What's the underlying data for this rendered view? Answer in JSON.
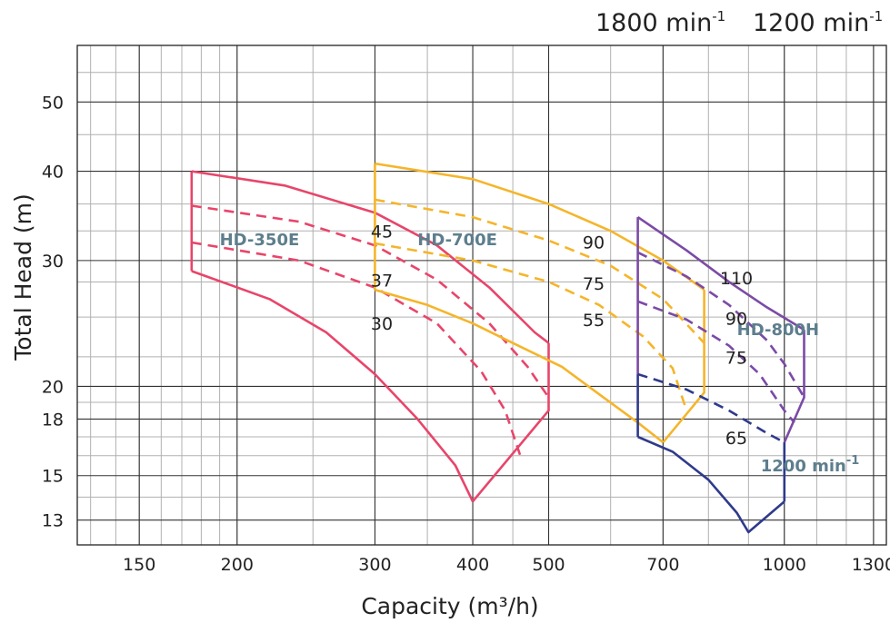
{
  "chart_data": {
    "type": "line",
    "title": "",
    "xlabel": "Capacity (m³/h)",
    "ylabel": "Total Head (m)",
    "xscale": "log",
    "yscale": "log",
    "xlim": [
      125,
      1350
    ],
    "ylim": [
      12,
      60
    ],
    "x_ticks": [
      150,
      200,
      300,
      400,
      500,
      700,
      1000,
      1300
    ],
    "y_ticks": [
      13,
      15,
      18,
      20,
      30,
      40,
      50
    ],
    "grid": true,
    "speed_header": [
      {
        "base": "1800 min",
        "sup": "-1"
      },
      {
        "base": "1200 min",
        "sup": "-1"
      }
    ],
    "models": [
      {
        "name": "HD-350E",
        "color": "#e8456a"
      },
      {
        "name": "HD-700E",
        "color": "#f5b52a"
      },
      {
        "name": "HD-800H",
        "color": "#7b4aa6"
      }
    ],
    "low_speed_label": {
      "base": "1200 min",
      "sup": "-1",
      "color": "#2e3a8c"
    },
    "series": [
      {
        "model": "HD-350E",
        "style": "solid",
        "color": "#e8456a",
        "points": [
          [
            175,
            40
          ],
          [
            230,
            38.2
          ],
          [
            300,
            35
          ],
          [
            360,
            31.5
          ],
          [
            420,
            27.5
          ],
          [
            480,
            23.8
          ],
          [
            500,
            23
          ]
        ]
      },
      {
        "model": "HD-350E",
        "style": "solid",
        "color": "#e8456a",
        "points": [
          [
            175,
            29
          ],
          [
            220,
            26.5
          ],
          [
            260,
            23.8
          ],
          [
            300,
            20.8
          ],
          [
            340,
            18
          ],
          [
            380,
            15.5
          ],
          [
            400,
            13.8
          ]
        ]
      },
      {
        "model": "HD-350E",
        "style": "solid",
        "color": "#e8456a",
        "points": [
          [
            175,
            29
          ],
          [
            175,
            40
          ]
        ]
      },
      {
        "model": "HD-350E",
        "style": "solid",
        "color": "#e8456a",
        "points": [
          [
            500,
            23
          ],
          [
            500,
            18.5
          ],
          [
            400,
            13.8
          ]
        ]
      },
      {
        "model": "HD-350E",
        "style": "dashed",
        "label": "45",
        "color": "#e8456a",
        "points": [
          [
            175,
            35.8
          ],
          [
            240,
            34
          ],
          [
            300,
            31.5
          ],
          [
            360,
            28.2
          ],
          [
            420,
            24.5
          ],
          [
            470,
            21.3
          ],
          [
            500,
            19.3
          ]
        ]
      },
      {
        "model": "HD-350E",
        "style": "dashed",
        "label": "37",
        "color": "#e8456a",
        "points": [
          [
            175,
            31.8
          ],
          [
            240,
            30
          ],
          [
            300,
            27.5
          ],
          [
            360,
            24.5
          ],
          [
            410,
            21
          ],
          [
            440,
            18.5
          ],
          [
            460,
            16
          ]
        ]
      },
      {
        "model": "HD-700E",
        "style": "solid",
        "color": "#f5b52a",
        "points": [
          [
            300,
            41
          ],
          [
            400,
            39
          ],
          [
            500,
            36
          ],
          [
            600,
            33
          ],
          [
            700,
            30
          ],
          [
            790,
            27.3
          ]
        ]
      },
      {
        "model": "HD-700E",
        "style": "solid",
        "color": "#f5b52a",
        "points": [
          [
            300,
            27.3
          ],
          [
            350,
            26
          ],
          [
            400,
            24.5
          ],
          [
            450,
            23
          ],
          [
            520,
            21.3
          ],
          [
            580,
            19.5
          ],
          [
            650,
            17.8
          ],
          [
            700,
            16.7
          ]
        ]
      },
      {
        "model": "HD-700E",
        "style": "solid",
        "color": "#f5b52a",
        "points": [
          [
            300,
            27.3
          ],
          [
            300,
            41
          ]
        ]
      },
      {
        "model": "HD-700E",
        "style": "solid",
        "color": "#f5b52a",
        "points": [
          [
            790,
            27.3
          ],
          [
            790,
            19.6
          ],
          [
            700,
            16.7
          ]
        ]
      },
      {
        "model": "HD-700E",
        "style": "dashed",
        "label": "90",
        "color": "#f5b52a",
        "points": [
          [
            300,
            36.5
          ],
          [
            400,
            34.5
          ],
          [
            500,
            32
          ],
          [
            600,
            29.5
          ],
          [
            700,
            26.5
          ],
          [
            790,
            23
          ]
        ]
      },
      {
        "model": "HD-700E",
        "style": "dashed",
        "label": "75",
        "color": "#f5b52a",
        "points": [
          [
            300,
            31.7
          ],
          [
            400,
            30
          ],
          [
            500,
            28
          ],
          [
            580,
            26
          ],
          [
            660,
            23.5
          ],
          [
            720,
            21.2
          ],
          [
            750,
            18.5
          ]
        ]
      },
      {
        "model": "HD-800H",
        "style": "solid",
        "color": "#7b4aa6",
        "points": [
          [
            650,
            34.5
          ],
          [
            750,
            31
          ],
          [
            850,
            28
          ],
          [
            950,
            25.8
          ],
          [
            1060,
            24
          ]
        ]
      },
      {
        "model": "HD-800H",
        "style": "solid",
        "color": "#7b4aa6",
        "points": [
          [
            650,
            34.5
          ],
          [
            650,
            20.8
          ]
        ]
      },
      {
        "model": "HD-800H",
        "style": "solid",
        "color": "#7b4aa6",
        "points": [
          [
            1060,
            24
          ],
          [
            1060,
            19.3
          ],
          [
            1000,
            16.7
          ]
        ]
      },
      {
        "model": "HD-800H",
        "style": "dashed",
        "label": "110",
        "color": "#7b4aa6",
        "points": [
          [
            650,
            30.8
          ],
          [
            750,
            28.5
          ],
          [
            850,
            26
          ],
          [
            950,
            23.2
          ],
          [
            1000,
            21.5
          ],
          [
            1060,
            19.3
          ]
        ]
      },
      {
        "model": "HD-800H",
        "style": "dashed",
        "label": "90",
        "color": "#7b4aa6",
        "points": [
          [
            650,
            26.3
          ],
          [
            750,
            24.8
          ],
          [
            850,
            22.8
          ],
          [
            930,
            20.8
          ],
          [
            1000,
            18.5
          ],
          [
            1030,
            17.8
          ]
        ]
      },
      {
        "model": "HD-800H",
        "style": "solid",
        "speed": "1200 min-1",
        "color": "#2e3a8c",
        "points": [
          [
            650,
            20.8
          ],
          [
            650,
            17
          ]
        ]
      },
      {
        "model": "HD-800H",
        "style": "solid",
        "speed": "1200 min-1",
        "color": "#2e3a8c",
        "points": [
          [
            650,
            17
          ],
          [
            720,
            16.2
          ],
          [
            800,
            14.8
          ],
          [
            870,
            13.3
          ],
          [
            900,
            12.5
          ],
          [
            1000,
            13.8
          ]
        ]
      },
      {
        "model": "HD-800H",
        "style": "solid",
        "speed": "1200 min-1",
        "color": "#2e3a8c",
        "points": [
          [
            1000,
            13.8
          ],
          [
            1000,
            16.7
          ]
        ]
      },
      {
        "model": "HD-800H",
        "style": "dashed",
        "label": "75",
        "speed": "1200 min-1",
        "color": "#2e3a8c",
        "points": [
          [
            650,
            20.8
          ],
          [
            750,
            19.8
          ],
          [
            850,
            18.5
          ],
          [
            950,
            17.2
          ],
          [
            1000,
            16.7
          ]
        ]
      }
    ],
    "kw_labels": [
      {
        "text": "45",
        "x": 250,
        "y": 32.3
      },
      {
        "text": "37",
        "x": 250,
        "y": 27.6
      },
      {
        "text": "30",
        "x": 250,
        "y": 24.0
      },
      {
        "text": "90",
        "x": 515,
        "y": 31.2
      },
      {
        "text": "75",
        "x": 515,
        "y": 27.3
      },
      {
        "text": "55",
        "x": 515,
        "y": 24.3
      },
      {
        "text": "110",
        "x": 850,
        "y": 27.8
      },
      {
        "text": "90",
        "x": 850,
        "y": 24.4
      },
      {
        "text": "75",
        "x": 850,
        "y": 21.5
      },
      {
        "text": "65",
        "x": 850,
        "y": 16.6
      }
    ]
  }
}
